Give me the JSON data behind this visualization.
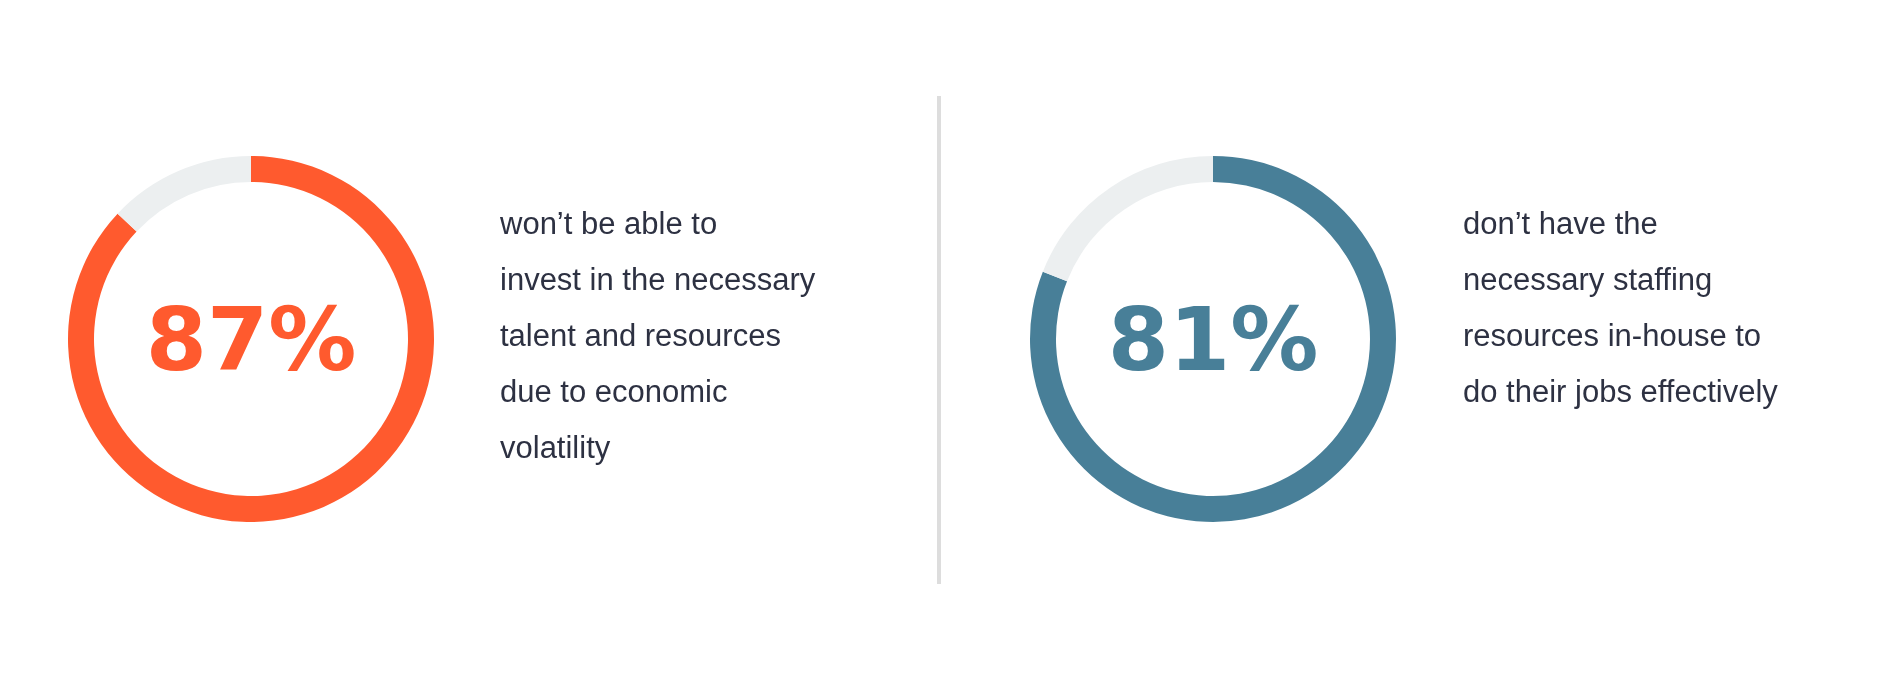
{
  "chart_data": [
    {
      "type": "donut",
      "categories": [
        null,
        null
      ],
      "values": [
        87,
        13
      ],
      "colors": [
        "#ff5a2e",
        "#eceff0"
      ],
      "value_labels": [
        "87%",
        null
      ],
      "annotations": [
        "won’t be able to invest in the necessary talent and resources due to economic volatility"
      ]
    },
    {
      "type": "donut",
      "categories": [
        null,
        null
      ],
      "values": [
        81,
        19
      ],
      "colors": [
        "#487f98",
        "#eceff0"
      ],
      "value_labels": [
        "81%",
        null
      ],
      "annotations": [
        "don’t have the necessary staffing resources in-house to do their jobs effectively"
      ]
    }
  ]
}
